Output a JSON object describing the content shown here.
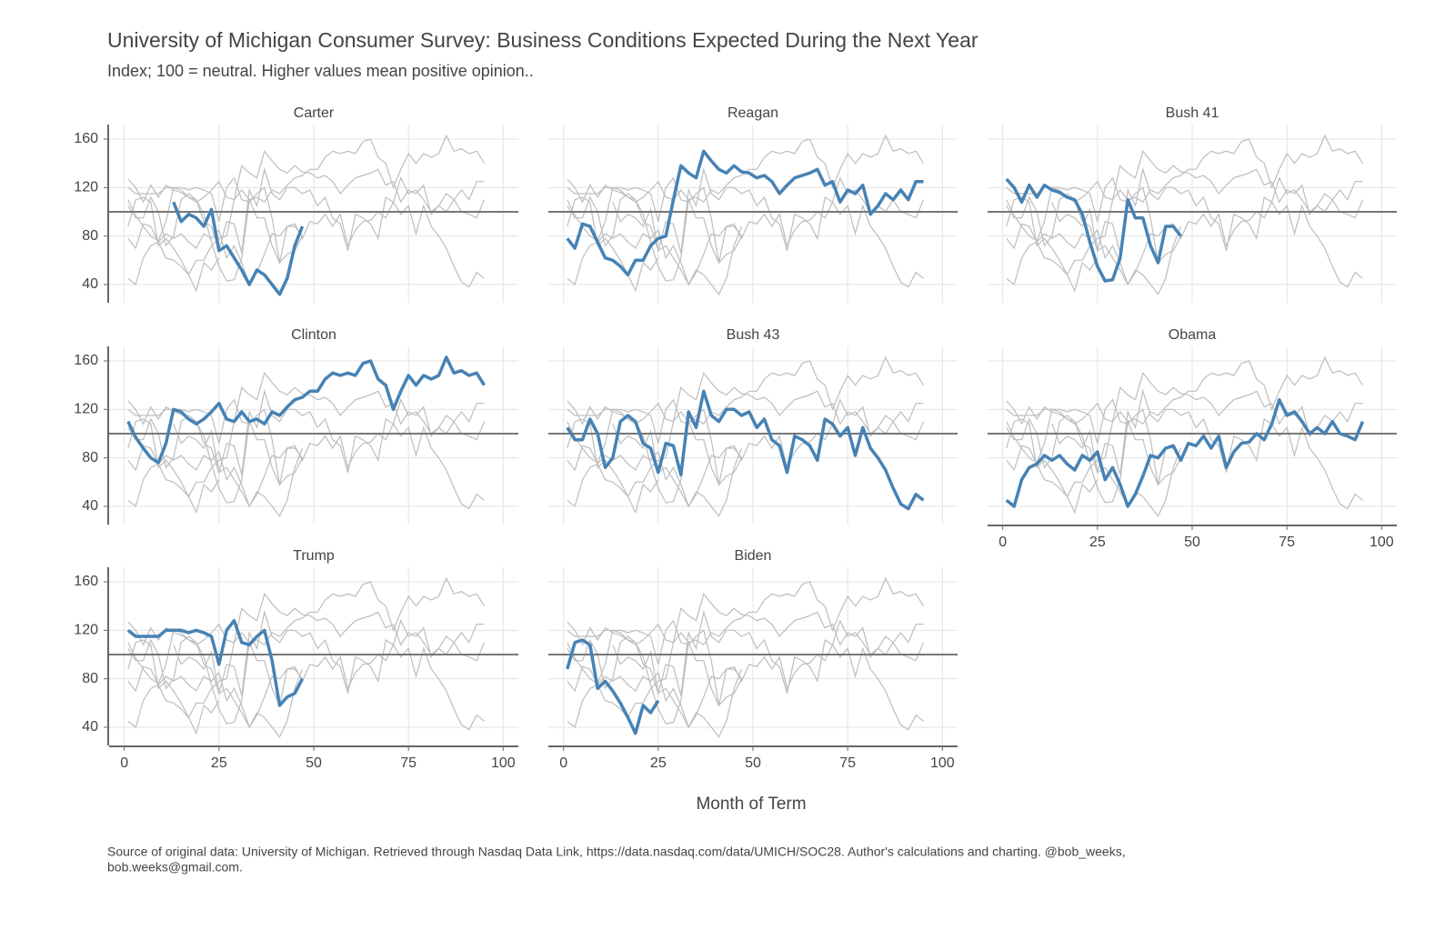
{
  "chart_data": {
    "type": "line",
    "title": "University of Michigan Consumer Survey: Business Conditions Expected During the Next Year",
    "subtitle": "Index; 100 = neutral. Higher values mean positive opinion..",
    "x_label": "Month of Term",
    "caption": [
      "Source of original data: University of Michigan. Retrieved through Nasdaq Data Link, https://data.nasdaq.com/data/UMICH/SOC28. Author's calculations and charting. @bob_weeks,",
      "bob.weeks@gmail.com."
    ],
    "xlim": [
      -4,
      104
    ],
    "xticks": [
      0,
      25,
      50,
      75,
      100
    ],
    "ylim": [
      25,
      172
    ],
    "yticks": [
      40,
      80,
      120,
      160
    ],
    "reference_line": 100,
    "grid": true,
    "highlight_color": "#4682b4",
    "context_color": "#bdbdbd",
    "x": [
      1,
      3,
      5,
      7,
      9,
      11,
      13,
      15,
      17,
      19,
      21,
      23,
      25,
      27,
      29,
      31,
      33,
      35,
      37,
      39,
      41,
      43,
      45,
      47,
      49,
      51,
      53,
      55,
      57,
      59,
      61,
      63,
      65,
      67,
      69,
      71,
      73,
      75,
      77,
      79,
      81,
      83,
      85,
      87,
      89,
      91,
      93,
      95
    ],
    "series": [
      {
        "name": "Carter",
        "values": [
          null,
          null,
          null,
          null,
          null,
          null,
          108,
          92,
          98,
          95,
          88,
          102,
          68,
          72,
          62,
          52,
          40,
          52,
          48,
          40,
          32,
          45,
          72,
          88,
          null,
          null,
          null,
          null,
          null,
          null,
          null,
          null,
          null,
          null,
          null,
          null,
          null,
          null,
          null,
          null,
          null,
          null,
          null,
          null,
          null,
          null,
          null,
          null
        ]
      },
      {
        "name": "Reagan",
        "values": [
          78,
          70,
          90,
          88,
          75,
          62,
          60,
          55,
          48,
          60,
          60,
          72,
          78,
          80,
          110,
          138,
          132,
          128,
          150,
          142,
          135,
          132,
          138,
          133,
          132,
          128,
          130,
          125,
          115,
          122,
          128,
          130,
          132,
          135,
          122,
          125,
          108,
          118,
          115,
          122,
          98,
          105,
          115,
          110,
          118,
          110,
          125,
          125
        ]
      },
      {
        "name": "Bush 41",
        "values": [
          127,
          120,
          108,
          122,
          112,
          122,
          118,
          116,
          112,
          110,
          98,
          75,
          55,
          43,
          44,
          62,
          110,
          95,
          95,
          72,
          58,
          88,
          88,
          80,
          null,
          null,
          null,
          null,
          null,
          null,
          null,
          null,
          null,
          null,
          null,
          null,
          null,
          null,
          null,
          null,
          null,
          null,
          null,
          null,
          null,
          null,
          null,
          null
        ]
      },
      {
        "name": "Clinton",
        "values": [
          110,
          97,
          88,
          80,
          76,
          92,
          120,
          118,
          112,
          108,
          112,
          118,
          125,
          112,
          110,
          118,
          110,
          112,
          108,
          118,
          115,
          122,
          128,
          130,
          135,
          135,
          145,
          150,
          148,
          150,
          148,
          158,
          160,
          145,
          140,
          120,
          135,
          148,
          140,
          148,
          145,
          148,
          163,
          150,
          152,
          148,
          150,
          140
        ]
      },
      {
        "name": "Bush 43",
        "values": [
          105,
          95,
          95,
          112,
          100,
          72,
          80,
          110,
          115,
          110,
          92,
          88,
          68,
          92,
          90,
          66,
          118,
          105,
          135,
          115,
          110,
          120,
          120,
          115,
          118,
          105,
          112,
          95,
          90,
          68,
          98,
          95,
          90,
          78,
          112,
          108,
          98,
          105,
          82,
          105,
          88,
          80,
          70,
          55,
          42,
          38,
          50,
          45
        ]
      },
      {
        "name": "Obama",
        "values": [
          45,
          40,
          62,
          72,
          75,
          82,
          78,
          82,
          75,
          70,
          82,
          78,
          85,
          62,
          72,
          58,
          40,
          50,
          65,
          82,
          80,
          88,
          90,
          78,
          92,
          90,
          98,
          88,
          98,
          72,
          85,
          92,
          93,
          100,
          95,
          108,
          128,
          115,
          118,
          110,
          100,
          105,
          100,
          110,
          100,
          98,
          95,
          110
        ]
      },
      {
        "name": "Trump",
        "values": [
          120,
          115,
          115,
          115,
          115,
          120,
          120,
          120,
          118,
          120,
          118,
          115,
          92,
          120,
          128,
          110,
          108,
          115,
          120,
          95,
          58,
          65,
          68,
          80,
          null,
          null,
          null,
          null,
          null,
          null,
          null,
          null,
          null,
          null,
          null,
          null,
          null,
          null,
          null,
          null,
          null,
          null,
          null,
          null,
          null,
          null,
          null,
          null
        ]
      },
      {
        "name": "Biden",
        "values": [
          88,
          110,
          112,
          108,
          72,
          78,
          70,
          60,
          48,
          35,
          58,
          52,
          62,
          null,
          null,
          null,
          null,
          null,
          null,
          null,
          null,
          null,
          null,
          null,
          null,
          null,
          null,
          null,
          null,
          null,
          null,
          null,
          null,
          null,
          null,
          null,
          null,
          null,
          null,
          null,
          null,
          null,
          null,
          null,
          null,
          null,
          null,
          null
        ]
      }
    ]
  }
}
